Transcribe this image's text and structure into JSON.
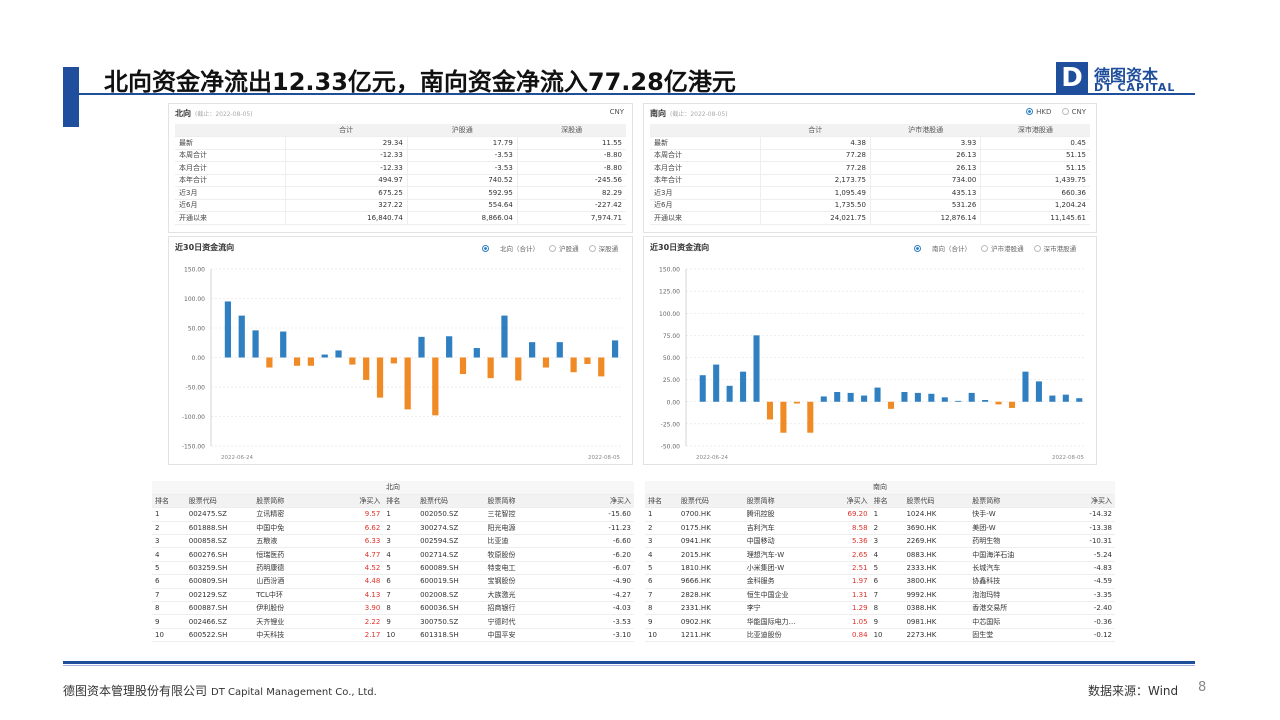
{
  "slide": {
    "title": "北向资金净流出12.33亿元，南向资金净流入77.28亿港元",
    "page": "8"
  },
  "logo": {
    "cn": "德图资本",
    "en": "DT CAPITAL",
    "mark": "D"
  },
  "footer": {
    "company_cn": "德图资本管理股份有限公司",
    "company_en": "DT Capital Management Co., Ltd.",
    "source": "数据来源：Wind"
  },
  "colors": {
    "brand": "#1f4e9c",
    "bar_pos": "#2f7fc1",
    "bar_neg": "#f08a24",
    "red": "#e0322a"
  },
  "north": {
    "header": "北向",
    "note": "(截止：2022-08-05)",
    "currency": "CNY",
    "columns": [
      "",
      "合计",
      "沪股通",
      "深股通"
    ],
    "rows": [
      [
        "最新",
        "29.34",
        "17.79",
        "11.55"
      ],
      [
        "本周合计",
        "-12.33",
        "-3.53",
        "-8.80"
      ],
      [
        "本月合计",
        "-12.33",
        "-3.53",
        "-8.80"
      ],
      [
        "本年合计",
        "494.97",
        "740.52",
        "-245.56"
      ],
      [
        "近3月",
        "675.25",
        "592.95",
        "82.29"
      ],
      [
        "近6月",
        "327.22",
        "554.64",
        "-227.42"
      ],
      [
        "开通以来",
        "16,840.74",
        "8,866.04",
        "7,974.71"
      ]
    ],
    "chart_title": "近30日资金流向",
    "legend": [
      "北向（合计）",
      "沪股通",
      "深股通"
    ],
    "x_start": "2022-06-24",
    "x_end": "2022-08-05"
  },
  "south": {
    "header": "南向",
    "note": "(截止：2022-08-05)",
    "currency_options": [
      "HKD",
      "CNY"
    ],
    "columns": [
      "",
      "合计",
      "沪市港股通",
      "深市港股通"
    ],
    "rows": [
      [
        "最新",
        "4.38",
        "3.93",
        "0.45"
      ],
      [
        "本周合计",
        "77.28",
        "26.13",
        "51.15"
      ],
      [
        "本月合计",
        "77.28",
        "26.13",
        "51.15"
      ],
      [
        "本年合计",
        "2,173.75",
        "734.00",
        "1,439.75"
      ],
      [
        "近3月",
        "1,095.49",
        "435.13",
        "660.36"
      ],
      [
        "近6月",
        "1,735.50",
        "531.26",
        "1,204.24"
      ],
      [
        "开通以来",
        "24,021.75",
        "12,876.14",
        "11,145.61"
      ]
    ],
    "chart_title": "近30日资金流向",
    "legend": [
      "南向（合计）",
      "沪市港股通",
      "深市港股通"
    ],
    "x_start": "2022-06-24",
    "x_end": "2022-08-05"
  },
  "chart_data": [
    {
      "type": "bar",
      "title": "近30日资金流向",
      "series": [
        {
          "name": "北向（合计）",
          "values": [
            95,
            71,
            46,
            -17,
            44,
            -14,
            -14,
            5,
            12,
            -12,
            -38,
            -68,
            -10,
            -88,
            35,
            -98,
            36,
            -28,
            16,
            -35,
            71,
            -39,
            26,
            -17,
            26,
            -25,
            -11,
            -32,
            29
          ]
        }
      ],
      "x_start": "2022-06-24",
      "x_end": "2022-08-05",
      "ylim": [
        -150,
        150
      ],
      "yticks": [
        150,
        100,
        50,
        0,
        -50,
        -100,
        -150
      ]
    },
    {
      "type": "bar",
      "title": "近30日资金流向",
      "series": [
        {
          "name": "南向（合计）",
          "values": [
            30,
            42,
            18,
            34,
            75,
            -20,
            -35,
            -2,
            -35,
            6,
            11,
            10,
            7,
            16,
            -8,
            11,
            10,
            9,
            5,
            1,
            10,
            2,
            -3,
            -7,
            34,
            23,
            7,
            8,
            4
          ]
        }
      ],
      "x_start": "2022-06-24",
      "x_end": "2022-08-05",
      "ylim": [
        -50,
        150
      ],
      "yticks": [
        150,
        125,
        100,
        75,
        50,
        25,
        0,
        -25,
        -50
      ]
    }
  ],
  "north_rank": {
    "caption": "北向",
    "headers": [
      "排名",
      "股票代码",
      "股票简称",
      "净买入",
      "排名",
      "股票代码",
      "股票简称",
      "净买入"
    ],
    "rows": [
      [
        "1",
        "002475.SZ",
        "立讯精密",
        "9.57",
        "1",
        "002050.SZ",
        "三花智控",
        "-15.60"
      ],
      [
        "2",
        "601888.SH",
        "中国中免",
        "6.62",
        "2",
        "300274.SZ",
        "阳光电源",
        "-11.23"
      ],
      [
        "3",
        "000858.SZ",
        "五粮液",
        "6.33",
        "3",
        "002594.SZ",
        "比亚迪",
        "-6.60"
      ],
      [
        "4",
        "600276.SH",
        "恒瑞医药",
        "4.77",
        "4",
        "002714.SZ",
        "牧原股份",
        "-6.20"
      ],
      [
        "5",
        "603259.SH",
        "药明康德",
        "4.52",
        "5",
        "600089.SH",
        "特变电工",
        "-6.07"
      ],
      [
        "6",
        "600809.SH",
        "山西汾酒",
        "4.48",
        "6",
        "600019.SH",
        "宝钢股份",
        "-4.90"
      ],
      [
        "7",
        "002129.SZ",
        "TCL中环",
        "4.13",
        "7",
        "002008.SZ",
        "大族激光",
        "-4.27"
      ],
      [
        "8",
        "600887.SH",
        "伊利股份",
        "3.90",
        "8",
        "600036.SH",
        "招商银行",
        "-4.03"
      ],
      [
        "9",
        "002466.SZ",
        "天齐锂业",
        "2.22",
        "9",
        "300750.SZ",
        "宁德时代",
        "-3.53"
      ],
      [
        "10",
        "600522.SH",
        "中天科技",
        "2.17",
        "10",
        "601318.SH",
        "中国平安",
        "-3.10"
      ]
    ]
  },
  "south_rank": {
    "caption": "南向",
    "headers": [
      "排名",
      "股票代码",
      "股票简称",
      "净买入",
      "排名",
      "股票代码",
      "股票简称",
      "净买入"
    ],
    "rows": [
      [
        "1",
        "0700.HK",
        "腾讯控股",
        "69.20",
        "1",
        "1024.HK",
        "快手-W",
        "-14.32"
      ],
      [
        "2",
        "0175.HK",
        "吉利汽车",
        "8.58",
        "2",
        "3690.HK",
        "美团-W",
        "-13.38"
      ],
      [
        "3",
        "0941.HK",
        "中国移动",
        "5.36",
        "3",
        "2269.HK",
        "药明生物",
        "-10.31"
      ],
      [
        "4",
        "2015.HK",
        "理想汽车-W",
        "2.65",
        "4",
        "0883.HK",
        "中国海洋石油",
        "-5.24"
      ],
      [
        "5",
        "1810.HK",
        "小米集团-W",
        "2.51",
        "5",
        "2333.HK",
        "长城汽车",
        "-4.83"
      ],
      [
        "6",
        "9666.HK",
        "金科服务",
        "1.97",
        "6",
        "3800.HK",
        "协鑫科技",
        "-4.59"
      ],
      [
        "7",
        "2828.HK",
        "恒生中国企业",
        "1.31",
        "7",
        "9992.HK",
        "泡泡玛特",
        "-3.35"
      ],
      [
        "8",
        "2331.HK",
        "李宁",
        "1.29",
        "8",
        "0388.HK",
        "香港交易所",
        "-2.40"
      ],
      [
        "9",
        "0902.HK",
        "华能国际电力…",
        "1.05",
        "9",
        "0981.HK",
        "中芯国际",
        "-0.36"
      ],
      [
        "10",
        "1211.HK",
        "比亚迪股份",
        "0.84",
        "10",
        "2273.HK",
        "固生堂",
        "-0.12"
      ]
    ]
  }
}
